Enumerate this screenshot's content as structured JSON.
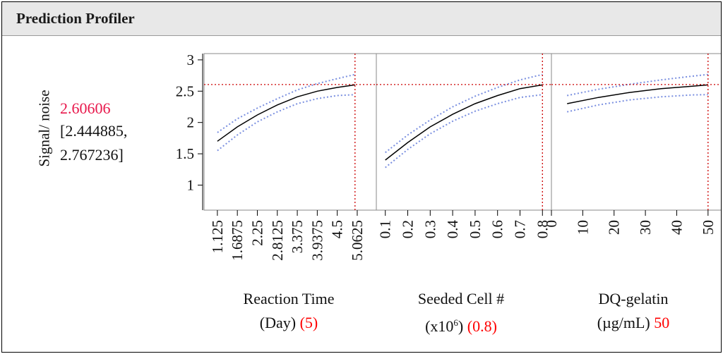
{
  "title": "Prediction Profiler",
  "response": {
    "label": "Signal/ noise",
    "value": "2.60606",
    "ci_lower": "[2.444885,",
    "ci_upper": "2.767236]"
  },
  "colors": {
    "accent_red": "#e8174b",
    "ci_blue": "#7a8fe0",
    "crosshair": "#cc0000",
    "curve": "#000000"
  },
  "chart_data": {
    "type": "line",
    "ylim": [
      0.6,
      3.1
    ],
    "yticks": [
      "1",
      "1.5",
      "2",
      "2.5",
      "3"
    ],
    "y_current": 2.60606,
    "panels": [
      {
        "factor_line1": "Reaction Time",
        "factor_line2": "(Day)",
        "current_label": "(5)",
        "xlim": [
          0.75,
          5.6
        ],
        "xticks": [
          "1.125",
          "1.6875",
          "2.25",
          "2.8125",
          "3.375",
          "3.9375",
          "4.5",
          "5.0625"
        ],
        "x_current": 5,
        "x": [
          1.125,
          1.6875,
          2.25,
          2.8125,
          3.375,
          3.9375,
          4.5,
          5.0
        ],
        "y": [
          1.7,
          1.93,
          2.12,
          2.28,
          2.41,
          2.5,
          2.56,
          2.6
        ],
        "lower": [
          1.55,
          1.8,
          2.01,
          2.17,
          2.3,
          2.38,
          2.43,
          2.445
        ],
        "upper": [
          1.84,
          2.06,
          2.23,
          2.38,
          2.52,
          2.62,
          2.7,
          2.767
        ]
      },
      {
        "factor_line1": "Seeded Cell #",
        "factor_line2": "(x10",
        "factor_sup": "6",
        "factor_line2_end": ")",
        "current_label": "(0.8)",
        "xlim": [
          0.06,
          0.84
        ],
        "xticks": [
          "0.1",
          "0.2",
          "0.3",
          "0.4",
          "0.5",
          "0.6",
          "0.7",
          "0.8"
        ],
        "x_current": 0.8,
        "x": [
          0.1,
          0.2,
          0.3,
          0.4,
          0.5,
          0.6,
          0.7,
          0.8
        ],
        "y": [
          1.4,
          1.68,
          1.93,
          2.13,
          2.3,
          2.43,
          2.54,
          2.6
        ],
        "lower": [
          1.28,
          1.57,
          1.82,
          2.02,
          2.18,
          2.3,
          2.4,
          2.445
        ],
        "upper": [
          1.52,
          1.8,
          2.04,
          2.25,
          2.42,
          2.56,
          2.68,
          2.767
        ]
      },
      {
        "factor_line1": "DQ-gelatin",
        "factor_line2": "(µg/mL)",
        "current_label": "50",
        "xlim": [
          0,
          55
        ],
        "xticks": [
          "0",
          "10",
          "20",
          "30",
          "40",
          "50"
        ],
        "x_current": 50,
        "x": [
          5,
          15,
          25,
          35,
          45,
          50
        ],
        "y": [
          2.3,
          2.4,
          2.48,
          2.54,
          2.58,
          2.6
        ],
        "lower": [
          2.17,
          2.28,
          2.36,
          2.41,
          2.44,
          2.445
        ],
        "upper": [
          2.43,
          2.53,
          2.61,
          2.68,
          2.74,
          2.767
        ]
      }
    ]
  }
}
